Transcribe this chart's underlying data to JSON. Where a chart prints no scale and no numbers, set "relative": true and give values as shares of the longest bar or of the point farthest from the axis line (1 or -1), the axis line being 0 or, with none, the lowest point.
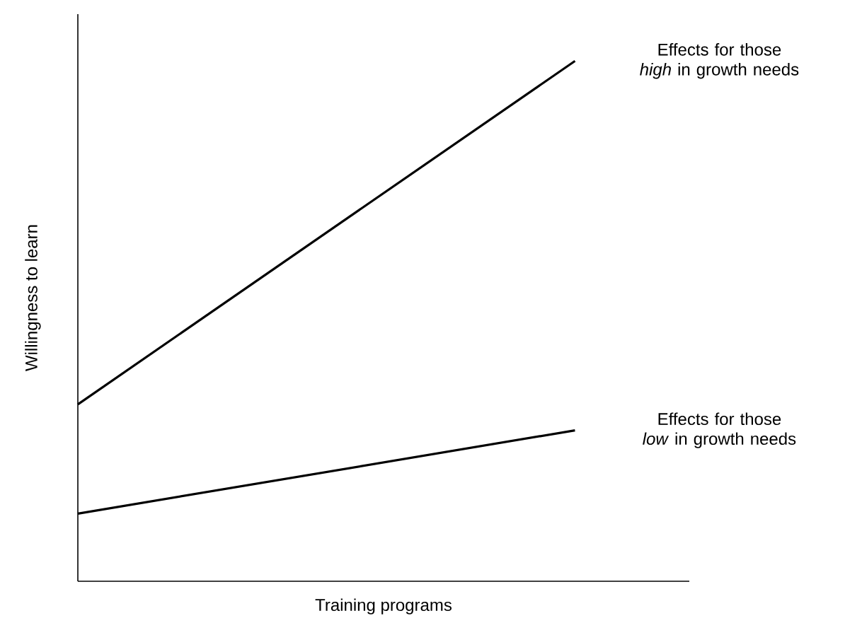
{
  "chart_data": {
    "type": "line",
    "relative": true,
    "xlabel": "Training programs",
    "ylabel": "Willingness to learn",
    "categories": [
      null,
      null
    ],
    "series": [
      {
        "name": "Effects for those *high* in growth needs",
        "color": "#000000",
        "values": [
          0.34,
          1
        ]
      },
      {
        "name": "Effects for those *low* in growth needs",
        "color": "#000000",
        "values": [
          0.13,
          0.29
        ]
      }
    ],
    "legend": false,
    "marker": "none",
    "line_style": "solid"
  }
}
